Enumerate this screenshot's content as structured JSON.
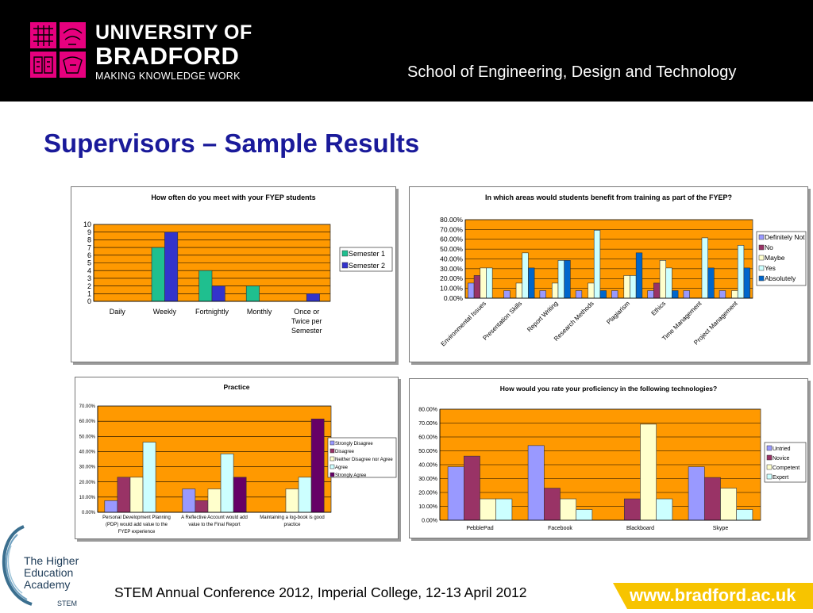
{
  "header": {
    "university_line1": "UNIVERSITY OF",
    "university_line2": "BRADFORD",
    "university_tagline": "MAKING KNOWLEDGE WORK",
    "school": "School of Engineering, Design and Technology"
  },
  "page_title": "Supervisors – Sample Results",
  "footer": {
    "conference": "STEM Annual Conference 2012, Imperial College, 12-13 April 2012",
    "url": "www.bradford.ac.uk",
    "hea_line1": "The Higher",
    "hea_line2": "Education",
    "hea_line3": "Academy",
    "hea_line4": "STEM"
  },
  "colors": {
    "brand_magenta": "#e6007e",
    "title_blue": "#1a1a9a",
    "plot_orange": "#ff9900",
    "url_yellow": "#f7c400"
  },
  "chart_data": [
    {
      "type": "bar",
      "title": "How often do you meet with your FYEP students",
      "categories": [
        "Daily",
        "Weekly",
        "Fortnightly",
        "Monthly",
        "Once or Twice per Semester"
      ],
      "category_lines": [
        [
          "Daily"
        ],
        [
          "Weekly"
        ],
        [
          "Fortnightly"
        ],
        [
          "Monthly"
        ],
        [
          "Once or",
          "Twice per",
          "Semester"
        ]
      ],
      "series": [
        {
          "name": "Semester 1",
          "color": "#1fbf8f",
          "values": [
            0,
            7,
            4,
            2,
            0
          ]
        },
        {
          "name": "Semester 2",
          "color": "#3333cc",
          "values": [
            0,
            9,
            2,
            0,
            1
          ]
        }
      ],
      "ylim": [
        0,
        10
      ],
      "yticks": [
        "0",
        "1",
        "2",
        "3",
        "4",
        "5",
        "6",
        "7",
        "8",
        "9",
        "10"
      ],
      "legend": "right"
    },
    {
      "type": "bar",
      "title": "In which areas would students benefit from training as part of the FYEP?",
      "categories": [
        "Environmental Issues",
        "Presentation Skills",
        "Report Writing",
        "Research Methods",
        "Plagiarism",
        "Ethics",
        "Time Management",
        "Project Management"
      ],
      "series": [
        {
          "name": "Definitely Not",
          "color": "#9999ff",
          "values": [
            15.4,
            7.7,
            7.7,
            7.7,
            7.7,
            7.7,
            7.7,
            7.7
          ]
        },
        {
          "name": "No",
          "color": "#993366",
          "values": [
            23.1,
            0,
            0,
            0,
            0,
            15.4,
            0,
            0
          ]
        },
        {
          "name": "Maybe",
          "color": "#ffffcc",
          "values": [
            30.8,
            15.4,
            15.4,
            15.4,
            23.1,
            38.5,
            0,
            7.7
          ]
        },
        {
          "name": "Yes",
          "color": "#ccffff",
          "values": [
            30.8,
            46.2,
            38.5,
            69.2,
            23.1,
            30.8,
            61.5,
            53.8
          ]
        },
        {
          "name": "Absolutely",
          "color": "#0066cc",
          "values": [
            0,
            30.8,
            38.5,
            7.7,
            46.2,
            7.7,
            30.8,
            30.8
          ]
        }
      ],
      "ylim": [
        0,
        80
      ],
      "yticks": [
        "0.00%",
        "10.00%",
        "20.00%",
        "30.00%",
        "40.00%",
        "50.00%",
        "60.00%",
        "70.00%",
        "80.00%"
      ],
      "legend": "right"
    },
    {
      "type": "bar",
      "title": "Practice",
      "categories": [
        "Personal Development Planning (PDP) would add value to the FYEP experience",
        "A Reflective Account would add value to the Final Report",
        "Maintaining a log-book is good practice"
      ],
      "category_lines": [
        [
          "Personal Development Planning",
          "(PDP) would add value to the",
          "FYEP experience"
        ],
        [
          "A Reflective Account would add",
          "value to the Final Report"
        ],
        [
          "Maintaining a log-book is good",
          "practice"
        ]
      ],
      "series": [
        {
          "name": "Strongly Disagree",
          "color": "#9999ff",
          "values": [
            7.7,
            15.4,
            0
          ]
        },
        {
          "name": "Disagree",
          "color": "#993366",
          "values": [
            23.1,
            7.7,
            0
          ]
        },
        {
          "name": "Neither Disagree nor Agree",
          "color": "#ffffcc",
          "values": [
            23.1,
            15.4,
            15.4
          ]
        },
        {
          "name": "Agree",
          "color": "#ccffff",
          "values": [
            46.2,
            38.5,
            23.1
          ]
        },
        {
          "name": "Strongly Agree",
          "color": "#660066",
          "values": [
            0,
            23.1,
            61.5
          ]
        }
      ],
      "ylim": [
        0,
        70
      ],
      "yticks": [
        "0.00%",
        "10.00%",
        "20.00%",
        "30.00%",
        "40.00%",
        "50.00%",
        "60.00%",
        "70.00%"
      ],
      "legend": "right"
    },
    {
      "type": "bar",
      "title": "How would you rate your proficiency in the following technologies?",
      "categories": [
        "PebblePad",
        "Facebook",
        "Blackboard",
        "Skype"
      ],
      "series": [
        {
          "name": "Untried",
          "color": "#9999ff",
          "values": [
            38.5,
            53.8,
            0,
            38.5
          ]
        },
        {
          "name": "Novice",
          "color": "#993366",
          "values": [
            46.2,
            23.1,
            15.4,
            30.8
          ]
        },
        {
          "name": "Competent",
          "color": "#ffffcc",
          "values": [
            15.4,
            15.4,
            69.2,
            23.1
          ]
        },
        {
          "name": "Expert",
          "color": "#ccffff",
          "values": [
            15.4,
            7.7,
            15.4,
            7.7
          ]
        }
      ],
      "ylim": [
        0,
        80
      ],
      "yticks": [
        "0.00%",
        "10.00%",
        "20.00%",
        "30.00%",
        "40.00%",
        "50.00%",
        "60.00%",
        "70.00%",
        "80.00%"
      ],
      "legend": "right"
    }
  ]
}
